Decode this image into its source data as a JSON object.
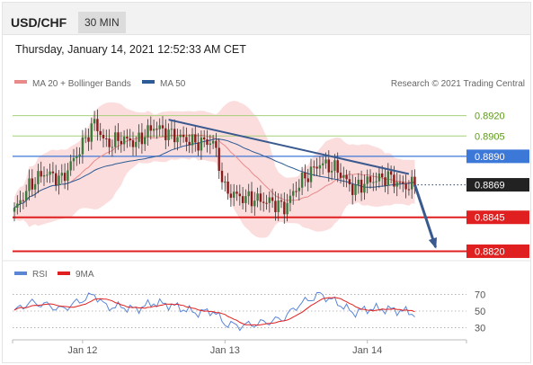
{
  "header": {
    "symbol": "USD/CHF",
    "timeframe": "30 MIN",
    "datetime": "Thursday, January 14, 2021 12:52:33 AM CET"
  },
  "legend": {
    "ma20": "MA 20 + Bollinger Bands",
    "ma50": "MA 50",
    "credit": "Research © 2021 Trading Central",
    "rsi": "RSI",
    "ma9": "9MA"
  },
  "colors": {
    "bollinger_fill": "#fbd7d7",
    "ma20": "#e88a8a",
    "ma50": "#2d5b96",
    "trendline": "#3a5a8f",
    "resistance": "#a6cf7a",
    "resistance_label": "#5f9a1f",
    "pivot": "#3c78d8",
    "support": "#e02020",
    "current": "#222222",
    "candle_up": "#3c7a3c",
    "candle_down": "#8b1a1a",
    "rsi": "#5b86d6",
    "rsi_ma": "#e02020"
  },
  "chart_data": [
    {
      "type": "candlestick",
      "ylim": [
        0.8813,
        0.8937
      ],
      "levels": [
        {
          "value": 0.892,
          "label": "0.8920",
          "kind": "resistance"
        },
        {
          "value": 0.8905,
          "label": "0.8905",
          "kind": "resistance"
        },
        {
          "value": 0.889,
          "label": "0.8890",
          "kind": "pivot"
        },
        {
          "value": 0.8869,
          "label": "0.8869",
          "kind": "current"
        },
        {
          "value": 0.8845,
          "label": "0.8845",
          "kind": "support"
        },
        {
          "value": 0.882,
          "label": "0.8820",
          "kind": "support"
        }
      ],
      "x_ticks": [
        {
          "index": 23,
          "label": "Jan 12"
        },
        {
          "index": 71,
          "label": "Jan 13"
        },
        {
          "index": 119,
          "label": "Jan 14"
        }
      ],
      "n_bars": 136,
      "close_anchors": [
        [
          0,
          0.885
        ],
        [
          5,
          0.8868
        ],
        [
          10,
          0.8878
        ],
        [
          16,
          0.8873
        ],
        [
          22,
          0.8895
        ],
        [
          27,
          0.8915
        ],
        [
          31,
          0.8899
        ],
        [
          36,
          0.8903
        ],
        [
          41,
          0.89
        ],
        [
          47,
          0.8912
        ],
        [
          53,
          0.8906
        ],
        [
          61,
          0.89
        ],
        [
          67,
          0.8901
        ],
        [
          71,
          0.8865
        ],
        [
          76,
          0.886
        ],
        [
          82,
          0.8858
        ],
        [
          87,
          0.8856
        ],
        [
          91,
          0.8852
        ],
        [
          96,
          0.887
        ],
        [
          103,
          0.8885
        ],
        [
          109,
          0.888
        ],
        [
          114,
          0.8866
        ],
        [
          120,
          0.8872
        ],
        [
          126,
          0.8875
        ],
        [
          131,
          0.8868
        ],
        [
          135,
          0.8869
        ]
      ],
      "trendline": {
        "from_index": 52,
        "from_value": 0.8917,
        "to_index": 133,
        "to_value": 0.8877
      },
      "forecast": {
        "from_index": 135,
        "from_value": 0.8869,
        "to_index": 142,
        "to_value": 0.8823
      }
    },
    {
      "type": "line",
      "name": "RSI",
      "ylim": [
        22,
        78
      ],
      "y_ticks": [
        70,
        50,
        30
      ],
      "anchors": [
        [
          0,
          50
        ],
        [
          5,
          60
        ],
        [
          10,
          58
        ],
        [
          16,
          52
        ],
        [
          22,
          62
        ],
        [
          27,
          70
        ],
        [
          31,
          55
        ],
        [
          36,
          55
        ],
        [
          41,
          52
        ],
        [
          47,
          60
        ],
        [
          53,
          57
        ],
        [
          61,
          48
        ],
        [
          67,
          50
        ],
        [
          71,
          35
        ],
        [
          76,
          32
        ],
        [
          82,
          35
        ],
        [
          87,
          38
        ],
        [
          91,
          42
        ],
        [
          96,
          58
        ],
        [
          103,
          70
        ],
        [
          109,
          60
        ],
        [
          114,
          48
        ],
        [
          120,
          53
        ],
        [
          126,
          52
        ],
        [
          131,
          50
        ],
        [
          135,
          47
        ]
      ]
    }
  ]
}
